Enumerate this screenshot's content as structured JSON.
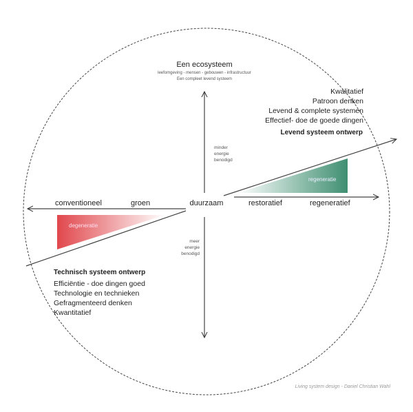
{
  "top": {
    "title": "Een ecosysteem",
    "sub1": "leefomgeving - mensen - gebouwen - infrastructuur",
    "sub2": "Een compleet levend systeem"
  },
  "right_block": {
    "lines": [
      "Kwalitatief",
      "Patroon denken",
      "Levend & complete systemen",
      "Effectief- doe de goede dingen"
    ],
    "heading": "Levend systeem ontwerp"
  },
  "left_block": {
    "heading": "Technisch systeem ontwerp",
    "lines": [
      "Efficiëntie - doe dingen goed",
      "Technologie en technieken",
      "Gefragmenteerd denken",
      "Kwantitatief"
    ]
  },
  "axis": {
    "center": "duurzaam",
    "left_far": "conventioneel",
    "left_near": "groen",
    "right_near": "restoratief",
    "right_far": "regeneratief",
    "up_note": [
      "minder",
      "energie",
      "benodigd"
    ],
    "down_note": [
      "meer",
      "energie",
      "benodigd"
    ]
  },
  "wedges": {
    "regen": "regeneratie",
    "degen": "degeneratie",
    "regen_color": "#3f8f72",
    "degen_color": "#e0474c"
  },
  "credit": "Living system design - Daniel Christian Wahl"
}
